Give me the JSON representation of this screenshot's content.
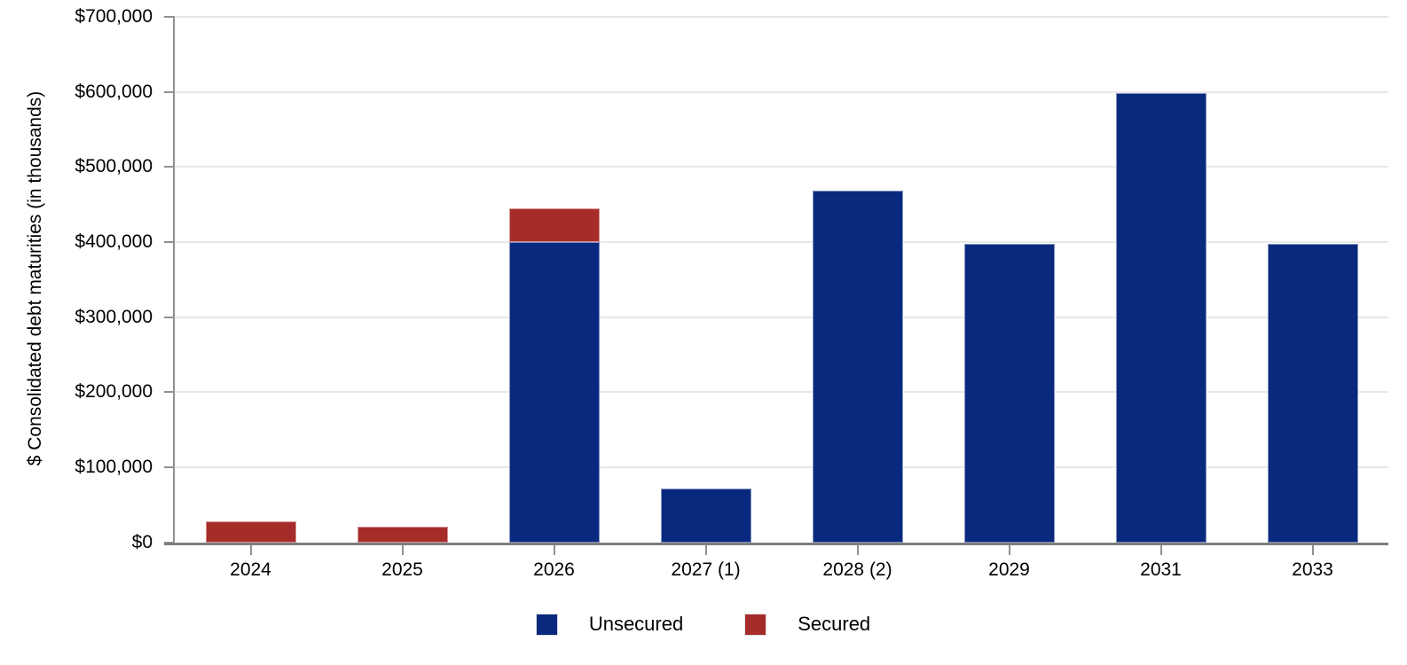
{
  "chart_data": {
    "type": "bar",
    "stacked": true,
    "title": "",
    "xlabel": "",
    "ylabel": "$ Consolidated debt maturities (in thousands)",
    "categories": [
      "2024",
      "2025",
      "2026",
      "2027 (1)",
      "2028 (2)",
      "2029",
      "2031",
      "2033"
    ],
    "series": [
      {
        "name": "Unsecured",
        "color": "#08297E",
        "values": [
          0,
          0,
          400000,
          72000,
          468000,
          397000,
          598000,
          397000
        ]
      },
      {
        "name": "Secured",
        "color": "#A62C2A",
        "values": [
          27500,
          21000,
          45000,
          0,
          0,
          0,
          0,
          0
        ]
      }
    ],
    "ylim": [
      0,
      700000
    ],
    "y_tick_step": 100000,
    "y_tick_labels": [
      "$0",
      "$100,000",
      "$200,000",
      "$300,000",
      "$400,000",
      "$500,000",
      "$600,000",
      "$700,000"
    ],
    "grid": true,
    "legend_position": "bottom",
    "axis_color": "#909090",
    "baseline_color": "#7E7E7E",
    "grid_color": "#E8E8E8",
    "text_color": "#000000"
  }
}
